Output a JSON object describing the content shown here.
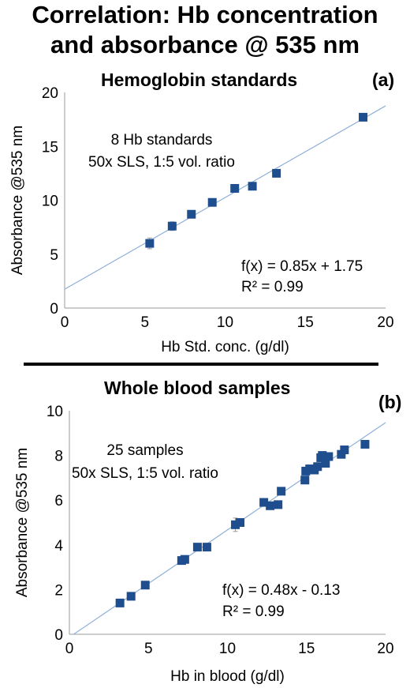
{
  "figure": {
    "title_line1": "Correlation: Hb concentration",
    "title_line2": "and absorbance @ 535 nm"
  },
  "chart_data": [
    {
      "type": "scatter",
      "title": "Hemoglobin standards",
      "panel_label": "(a)",
      "xlabel": "Hb Std. conc. (g/dl)",
      "ylabel": "Absorbance @535 nm",
      "xlim": [
        0,
        20
      ],
      "ylim": [
        0,
        20
      ],
      "xticks": [
        0,
        5,
        10,
        15,
        20
      ],
      "yticks": [
        0,
        5,
        10,
        15,
        20
      ],
      "grid": false,
      "annotation_line1": "8 Hb standards",
      "annotation_line2": "50x SLS, 1:5 vol. ratio",
      "equation": "f(x) = 0.85x + 1.75",
      "r_squared": "R² = 0.99",
      "trendline": {
        "slope": 0.85,
        "intercept": 1.75
      },
      "marker_color": "#1f4e8f",
      "trendline_color": "#8fb0d8",
      "points": [
        {
          "x": 5.3,
          "y": 6.0,
          "err": 0.5
        },
        {
          "x": 6.7,
          "y": 7.6,
          "err": 0.4
        },
        {
          "x": 7.9,
          "y": 8.7,
          "err": 0.2
        },
        {
          "x": 9.2,
          "y": 9.8,
          "err": 0.2
        },
        {
          "x": 10.6,
          "y": 11.1,
          "err": 0.2
        },
        {
          "x": 11.7,
          "y": 11.3,
          "err": 0.1
        },
        {
          "x": 13.2,
          "y": 12.5,
          "err": 0.1
        },
        {
          "x": 18.6,
          "y": 17.7,
          "err": 0.1
        }
      ]
    },
    {
      "type": "scatter",
      "title": "Whole blood samples",
      "panel_label": "(b)",
      "xlabel": "Hb in blood (g/dl)",
      "ylabel": "Absorbance @535 nm",
      "xlim": [
        0,
        20
      ],
      "ylim": [
        0,
        10
      ],
      "xticks": [
        0,
        5,
        10,
        15,
        20
      ],
      "yticks": [
        0,
        2,
        4,
        6,
        8,
        10
      ],
      "grid": false,
      "annotation_line1": "25 samples",
      "annotation_line2": "50x SLS, 1:5 vol. ratio",
      "equation": "f(x) = 0.48x - 0.13",
      "r_squared": "R² = 0.99",
      "trendline": {
        "slope": 0.48,
        "intercept": -0.13
      },
      "marker_color": "#1f4e8f",
      "trendline_color": "#8fb0d8",
      "points": [
        {
          "x": 3.2,
          "y": 1.4,
          "err": 0.05
        },
        {
          "x": 3.9,
          "y": 1.7,
          "err": 0.05
        },
        {
          "x": 4.8,
          "y": 2.2,
          "err": 0.05
        },
        {
          "x": 7.1,
          "y": 3.3,
          "err": 0.1
        },
        {
          "x": 7.3,
          "y": 3.35,
          "err": 0.1
        },
        {
          "x": 8.1,
          "y": 3.9,
          "err": 0.05
        },
        {
          "x": 8.7,
          "y": 3.9,
          "err": 0.05
        },
        {
          "x": 10.5,
          "y": 4.9,
          "err": 0.3
        },
        {
          "x": 10.8,
          "y": 5.0,
          "err": 0.1
        },
        {
          "x": 12.3,
          "y": 5.9,
          "err": 0.05
        },
        {
          "x": 12.7,
          "y": 5.75,
          "err": 0.05
        },
        {
          "x": 13.2,
          "y": 5.8,
          "err": 0.05
        },
        {
          "x": 13.4,
          "y": 6.4,
          "err": 0.05
        },
        {
          "x": 14.9,
          "y": 6.9,
          "err": 0.1
        },
        {
          "x": 14.95,
          "y": 7.3,
          "err": 0.1
        },
        {
          "x": 15.2,
          "y": 7.4,
          "err": 0.05
        },
        {
          "x": 15.5,
          "y": 7.35,
          "err": 0.05
        },
        {
          "x": 15.7,
          "y": 7.5,
          "err": 0.05
        },
        {
          "x": 15.9,
          "y": 7.9,
          "err": 0.05
        },
        {
          "x": 16.0,
          "y": 8.0,
          "err": 0.05
        },
        {
          "x": 16.2,
          "y": 7.65,
          "err": 0.05
        },
        {
          "x": 16.4,
          "y": 7.95,
          "err": 0.05
        },
        {
          "x": 17.2,
          "y": 8.05,
          "err": 0.05
        },
        {
          "x": 17.4,
          "y": 8.25,
          "err": 0.05
        },
        {
          "x": 18.7,
          "y": 8.5,
          "err": 0.05
        }
      ]
    }
  ]
}
